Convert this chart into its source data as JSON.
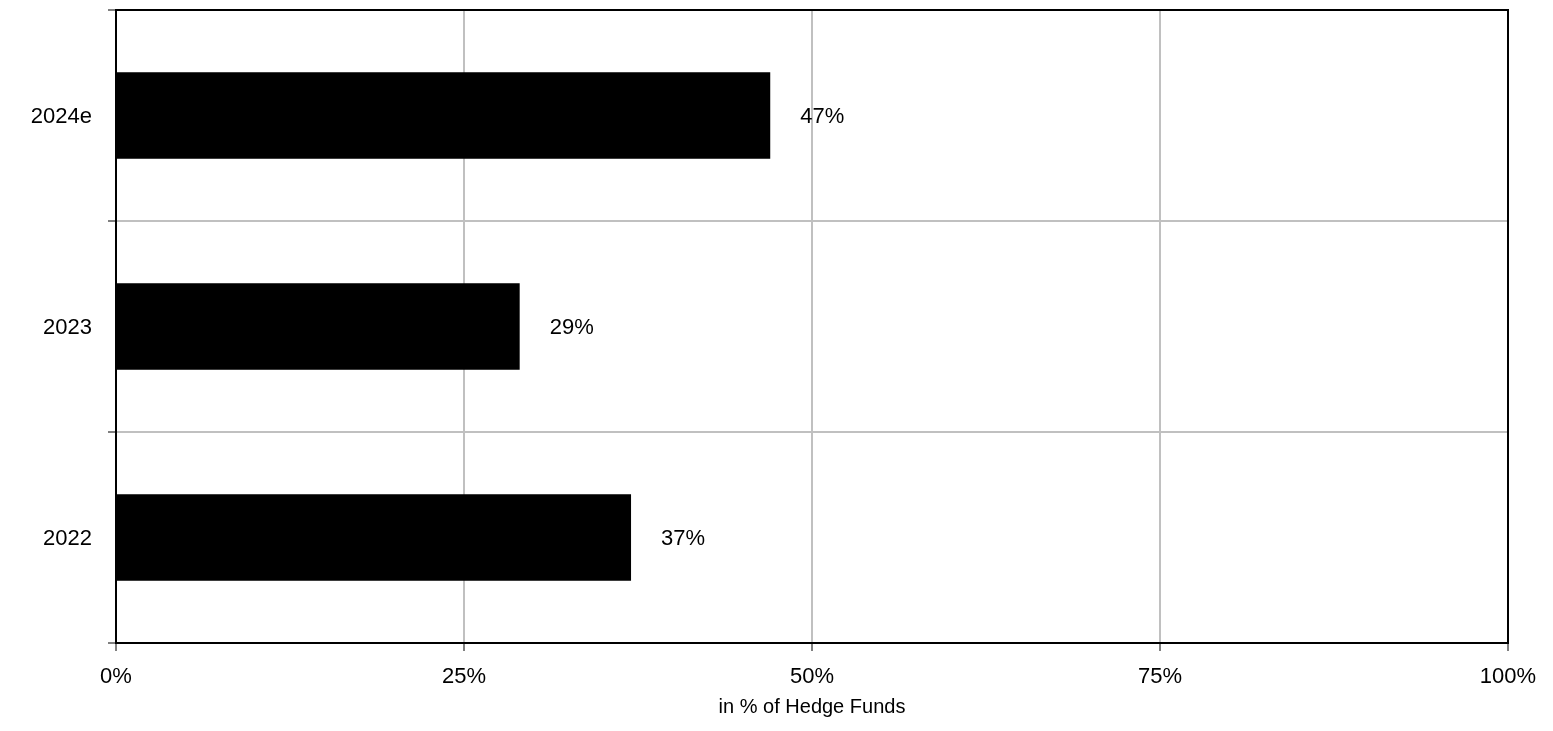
{
  "chart_data": {
    "type": "bar",
    "orientation": "horizontal",
    "categories": [
      "2024e",
      "2023",
      "2022"
    ],
    "values": [
      47,
      29,
      37
    ],
    "color": "#000000",
    "value_labels": [
      "47%",
      "29%",
      "37%"
    ],
    "xlim": [
      0,
      100
    ],
    "xticks": [
      {
        "value": 0,
        "label": "0%"
      },
      {
        "value": 25,
        "label": "25%"
      },
      {
        "value": 50,
        "label": "50%"
      },
      {
        "value": 75,
        "label": "75%"
      },
      {
        "value": 100,
        "label": "100%"
      }
    ],
    "xlabel": "in % of Hedge Funds",
    "grid": true
  }
}
